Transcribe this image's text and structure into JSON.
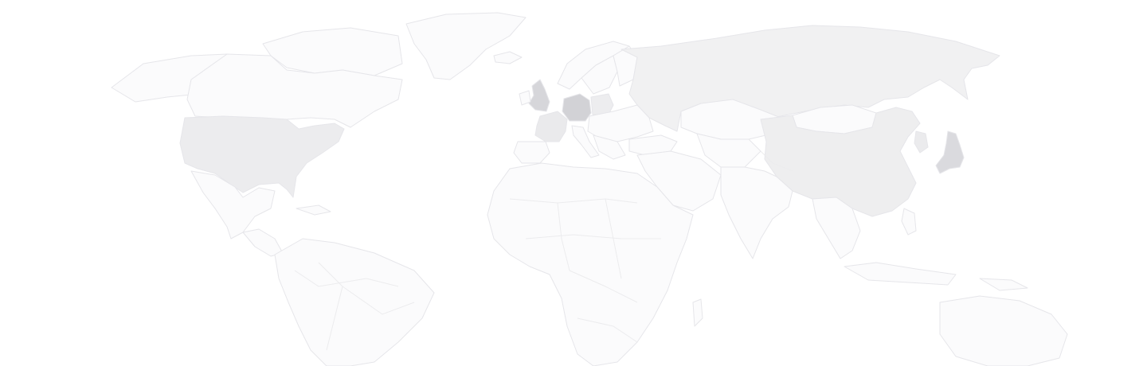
{
  "map": {
    "background": "#ffffff",
    "base_fill": "#fbfbfc",
    "border_color": "#e8e8eb",
    "countries": {
      "usa": {
        "shade": "#ececee"
      },
      "russia": {
        "shade": "#f1f1f2"
      },
      "china": {
        "shade": "#eeeeef"
      },
      "uk": {
        "shade": "#d6d6da"
      },
      "germany": {
        "shade": "#d2d2d6"
      },
      "france": {
        "shade": "#eaeaec"
      },
      "poland": {
        "shade": "#ededef"
      },
      "japan": {
        "shade": "#dadade"
      },
      "mongolia": {
        "shade": "#fbfbfc"
      },
      "korea": {
        "shade": "#ebebed"
      }
    }
  }
}
